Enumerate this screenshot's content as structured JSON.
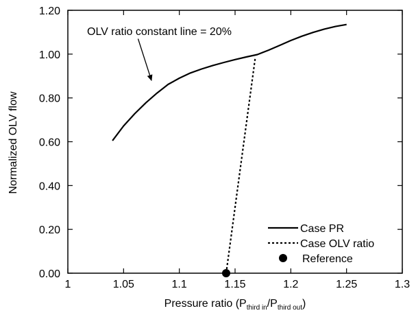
{
  "chart_data": {
    "type": "line",
    "xlabel": {
      "prefix": "Pressure ratio (P",
      "sub1": "third in",
      "mid": "/P",
      "sub2": "third out",
      "suffix": ")"
    },
    "ylabel": "Normalized OLV flow",
    "xlim": [
      1.0,
      1.3
    ],
    "ylim": [
      0.0,
      1.2
    ],
    "x_ticks": [
      1.0,
      1.05,
      1.1,
      1.15,
      1.2,
      1.25,
      1.3
    ],
    "x_tick_labels": [
      "1",
      "1.05",
      "1.1",
      "1.15",
      "1.2",
      "1.25",
      "1.3"
    ],
    "y_ticks": [
      0.0,
      0.2,
      0.4,
      0.6,
      0.8,
      1.0,
      1.2
    ],
    "y_tick_labels": [
      "0.00",
      "0.20",
      "0.40",
      "0.60",
      "0.80",
      "1.00",
      "1.20"
    ],
    "grid": false,
    "legend_position": "bottom-right",
    "series": [
      {
        "name": "Case PR",
        "style": "solid",
        "x": [
          1.04,
          1.05,
          1.06,
          1.07,
          1.08,
          1.09,
          1.1,
          1.11,
          1.12,
          1.13,
          1.14,
          1.15,
          1.16,
          1.17,
          1.18,
          1.19,
          1.2,
          1.21,
          1.22,
          1.23,
          1.24,
          1.25
        ],
        "y": [
          0.605,
          0.672,
          0.728,
          0.778,
          0.822,
          0.862,
          0.89,
          0.914,
          0.932,
          0.948,
          0.962,
          0.975,
          0.987,
          0.998,
          1.018,
          1.04,
          1.062,
          1.082,
          1.099,
          1.114,
          1.126,
          1.135
        ]
      },
      {
        "name": "Case OLV ratio",
        "style": "dotted",
        "x": [
          1.142,
          1.168
        ],
        "y": [
          0.0,
          0.98
        ]
      },
      {
        "name": "Reference",
        "style": "marker",
        "x": [
          1.142
        ],
        "y": [
          0.0
        ]
      }
    ],
    "annotation": {
      "text": "OLV ratio constant line = 20%",
      "arrow_from": [
        1.063,
        1.07
      ],
      "arrow_to": [
        1.075,
        0.88
      ]
    }
  }
}
